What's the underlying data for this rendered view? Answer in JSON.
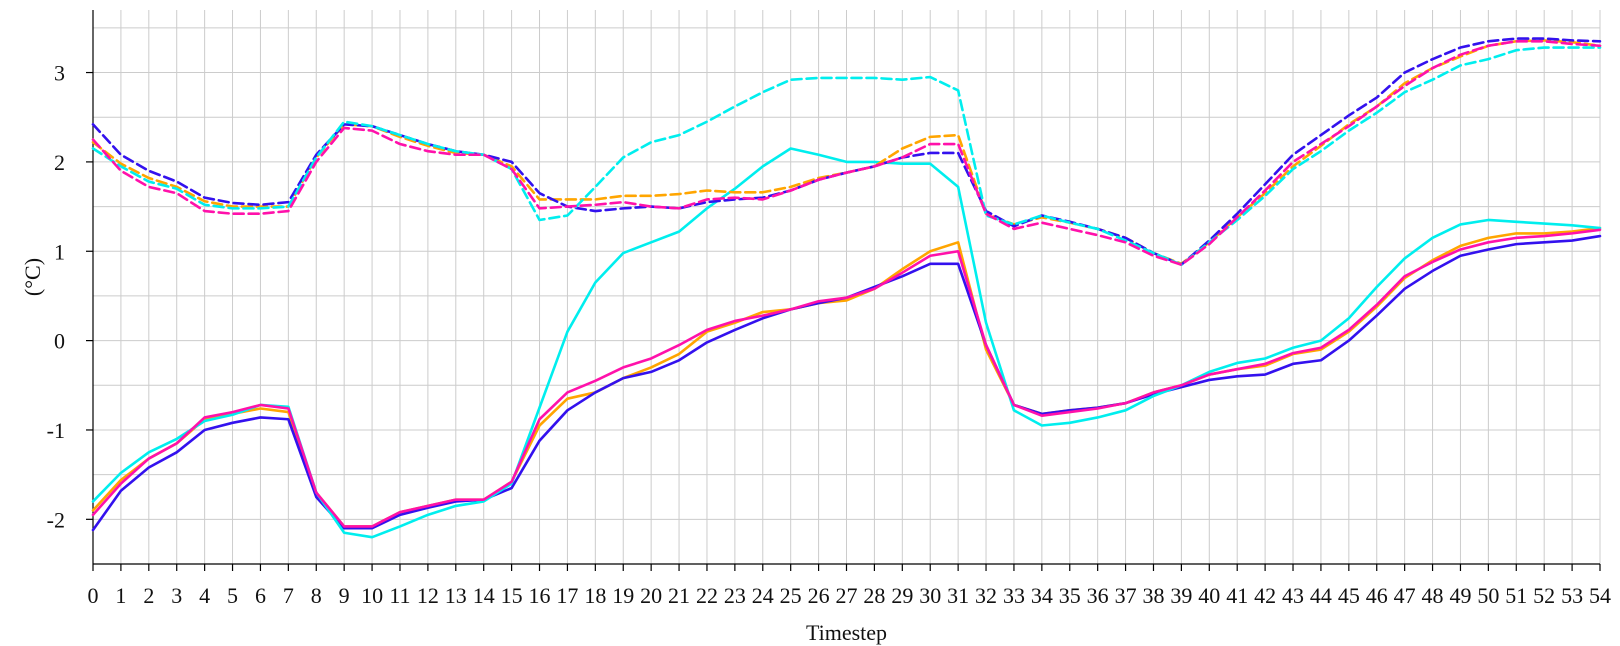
{
  "chart_data": {
    "type": "line",
    "title": "",
    "xlabel": "Timestep",
    "ylabel": "(°C)",
    "xlim": [
      0,
      54
    ],
    "ylim": [
      -2.5,
      3.7
    ],
    "y_ticks": [
      3,
      2,
      1,
      0,
      -1,
      -2
    ],
    "y_tick_labels": [
      "3",
      "2",
      "1",
      "0",
      "-1",
      "-2"
    ],
    "x": [
      0,
      1,
      2,
      3,
      4,
      5,
      6,
      7,
      8,
      9,
      10,
      11,
      12,
      13,
      14,
      15,
      16,
      17,
      18,
      19,
      20,
      21,
      22,
      23,
      24,
      25,
      26,
      27,
      28,
      29,
      30,
      31,
      32,
      33,
      34,
      35,
      36,
      37,
      38,
      39,
      40,
      41,
      42,
      43,
      44,
      45,
      46,
      47,
      48,
      49,
      50,
      51,
      52,
      53,
      54
    ],
    "x_tick_labels": [
      "0",
      "1",
      "2",
      "3",
      "4",
      "5",
      "6",
      "7",
      "8",
      "9",
      "10",
      "11",
      "12",
      "13",
      "14",
      "15",
      "16",
      "17",
      "18",
      "19",
      "20",
      "21",
      "22",
      "23",
      "24",
      "25",
      "26",
      "27",
      "28",
      "29",
      "30",
      "31",
      "32",
      "33",
      "34",
      "35",
      "36",
      "37",
      "38",
      "39",
      "40",
      "41",
      "42",
      "43",
      "44",
      "45",
      "46",
      "47",
      "48",
      "49",
      "50",
      "51",
      "52",
      "53",
      "54"
    ],
    "grid": true,
    "legend": "none",
    "series": [
      {
        "color": "#ffa500",
        "dash": "solid",
        "values": [
          -1.9,
          -1.56,
          -1.32,
          -1.15,
          -0.88,
          -0.82,
          -0.76,
          -0.8,
          -1.7,
          -2.08,
          -2.08,
          -1.92,
          -1.85,
          -1.78,
          -1.78,
          -1.58,
          -0.95,
          -0.65,
          -0.58,
          -0.42,
          -0.3,
          -0.15,
          0.1,
          0.2,
          0.32,
          0.35,
          0.42,
          0.45,
          0.58,
          0.8,
          1.0,
          1.1,
          -0.1,
          -0.72,
          -0.82,
          -0.78,
          -0.75,
          -0.7,
          -0.58,
          -0.5,
          -0.38,
          -0.32,
          -0.28,
          -0.15,
          -0.1,
          0.1,
          0.38,
          0.7,
          0.9,
          1.06,
          1.15,
          1.2,
          1.2,
          1.22,
          1.26
        ]
      },
      {
        "color": "#3311ee",
        "dash": "solid",
        "values": [
          -2.12,
          -1.68,
          -1.42,
          -1.25,
          -1.0,
          -0.92,
          -0.86,
          -0.88,
          -1.75,
          -2.1,
          -2.1,
          -1.95,
          -1.87,
          -1.8,
          -1.78,
          -1.65,
          -1.12,
          -0.78,
          -0.58,
          -0.42,
          -0.35,
          -0.22,
          -0.02,
          0.12,
          0.25,
          0.35,
          0.42,
          0.48,
          0.6,
          0.72,
          0.86,
          0.86,
          -0.05,
          -0.72,
          -0.82,
          -0.78,
          -0.75,
          -0.7,
          -0.6,
          -0.52,
          -0.44,
          -0.4,
          -0.38,
          -0.26,
          -0.22,
          0.0,
          0.28,
          0.58,
          0.78,
          0.95,
          1.02,
          1.08,
          1.1,
          1.12,
          1.17
        ]
      },
      {
        "color": "#00eeee",
        "dash": "solid",
        "values": [
          -1.8,
          -1.48,
          -1.25,
          -1.1,
          -0.9,
          -0.83,
          -0.72,
          -0.74,
          -1.7,
          -2.15,
          -2.2,
          -2.08,
          -1.95,
          -1.85,
          -1.8,
          -1.6,
          -0.75,
          0.1,
          0.65,
          0.98,
          1.1,
          1.22,
          1.48,
          1.7,
          1.95,
          2.15,
          2.08,
          2.0,
          2.0,
          1.98,
          1.98,
          1.72,
          0.2,
          -0.78,
          -0.95,
          -0.92,
          -0.86,
          -0.78,
          -0.62,
          -0.5,
          -0.35,
          -0.25,
          -0.2,
          -0.08,
          0.0,
          0.25,
          0.6,
          0.92,
          1.15,
          1.3,
          1.35,
          1.33,
          1.31,
          1.29,
          1.26
        ]
      },
      {
        "color": "#ff11aa",
        "dash": "solid",
        "values": [
          -1.95,
          -1.6,
          -1.32,
          -1.15,
          -0.86,
          -0.8,
          -0.72,
          -0.76,
          -1.7,
          -2.08,
          -2.08,
          -1.92,
          -1.85,
          -1.78,
          -1.78,
          -1.58,
          -0.88,
          -0.58,
          -0.45,
          -0.3,
          -0.2,
          -0.05,
          0.12,
          0.22,
          0.28,
          0.35,
          0.44,
          0.48,
          0.58,
          0.76,
          0.95,
          1.0,
          -0.05,
          -0.72,
          -0.84,
          -0.8,
          -0.76,
          -0.7,
          -0.58,
          -0.5,
          -0.38,
          -0.32,
          -0.26,
          -0.14,
          -0.08,
          0.12,
          0.4,
          0.72,
          0.88,
          1.02,
          1.1,
          1.15,
          1.17,
          1.2,
          1.24
        ]
      },
      {
        "color": "#ffa500",
        "dash": "dashed",
        "values": [
          2.22,
          1.98,
          1.82,
          1.72,
          1.56,
          1.5,
          1.5,
          1.5,
          2.05,
          2.42,
          2.4,
          2.28,
          2.18,
          2.1,
          2.08,
          1.95,
          1.58,
          1.58,
          1.58,
          1.62,
          1.62,
          1.64,
          1.68,
          1.66,
          1.66,
          1.72,
          1.82,
          1.88,
          1.95,
          2.15,
          2.28,
          2.3,
          1.42,
          1.3,
          1.38,
          1.32,
          1.25,
          1.15,
          0.98,
          0.86,
          1.1,
          1.38,
          1.65,
          1.95,
          2.18,
          2.42,
          2.62,
          2.88,
          3.05,
          3.18,
          3.3,
          3.35,
          3.36,
          3.34,
          3.3
        ]
      },
      {
        "color": "#3311ee",
        "dash": "dashed",
        "values": [
          2.42,
          2.08,
          1.9,
          1.78,
          1.6,
          1.54,
          1.52,
          1.55,
          2.08,
          2.42,
          2.4,
          2.3,
          2.2,
          2.12,
          2.08,
          2.0,
          1.65,
          1.5,
          1.45,
          1.48,
          1.5,
          1.48,
          1.55,
          1.58,
          1.6,
          1.68,
          1.8,
          1.88,
          1.95,
          2.05,
          2.1,
          2.1,
          1.45,
          1.28,
          1.4,
          1.33,
          1.25,
          1.15,
          0.98,
          0.85,
          1.12,
          1.42,
          1.75,
          2.08,
          2.3,
          2.52,
          2.72,
          3.0,
          3.15,
          3.28,
          3.35,
          3.38,
          3.38,
          3.36,
          3.35
        ]
      },
      {
        "color": "#00eeee",
        "dash": "dashed",
        "values": [
          2.15,
          1.95,
          1.78,
          1.7,
          1.52,
          1.48,
          1.48,
          1.5,
          2.05,
          2.45,
          2.4,
          2.3,
          2.2,
          2.12,
          2.08,
          1.92,
          1.35,
          1.4,
          1.72,
          2.05,
          2.22,
          2.3,
          2.45,
          2.62,
          2.78,
          2.92,
          2.94,
          2.94,
          2.94,
          2.92,
          2.95,
          2.8,
          1.4,
          1.3,
          1.4,
          1.32,
          1.25,
          1.12,
          0.98,
          0.85,
          1.1,
          1.35,
          1.62,
          1.92,
          2.12,
          2.35,
          2.55,
          2.78,
          2.92,
          3.08,
          3.15,
          3.25,
          3.28,
          3.28,
          3.28
        ]
      },
      {
        "color": "#ff11aa",
        "dash": "dashed",
        "values": [
          2.25,
          1.9,
          1.72,
          1.65,
          1.45,
          1.42,
          1.42,
          1.45,
          2.0,
          2.38,
          2.35,
          2.2,
          2.12,
          2.08,
          2.08,
          1.92,
          1.48,
          1.5,
          1.52,
          1.55,
          1.5,
          1.48,
          1.58,
          1.6,
          1.58,
          1.68,
          1.8,
          1.88,
          1.95,
          2.05,
          2.2,
          2.2,
          1.42,
          1.25,
          1.32,
          1.25,
          1.18,
          1.1,
          0.95,
          0.85,
          1.08,
          1.38,
          1.68,
          2.0,
          2.2,
          2.4,
          2.62,
          2.85,
          3.05,
          3.2,
          3.3,
          3.35,
          3.35,
          3.32,
          3.3
        ]
      }
    ]
  }
}
